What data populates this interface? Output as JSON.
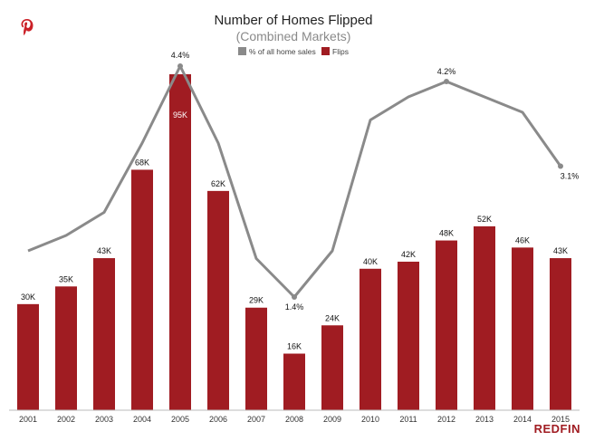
{
  "chart_data": {
    "type": "bar",
    "title": "Number of Homes Flipped",
    "subtitle": "(Combined Markets)",
    "legend_position": "top-center",
    "categories": [
      "2001",
      "2002",
      "2003",
      "2004",
      "2005",
      "2006",
      "2007",
      "2008",
      "2009",
      "2010",
      "2011",
      "2012",
      "2013",
      "2014",
      "2015"
    ],
    "series": [
      {
        "name": "Flips",
        "kind": "bar",
        "color": "#a01c22",
        "label_color": "#000000",
        "values": [
          30,
          35,
          43,
          68,
          95,
          62,
          29,
          16,
          24,
          40,
          42,
          48,
          52,
          46,
          43
        ],
        "labels": [
          "30K",
          "35K",
          "43K",
          "68K",
          "95K",
          "62K",
          "29K",
          "16K",
          "24K",
          "40K",
          "42K",
          "48K",
          "52K",
          "46K",
          "43K"
        ]
      },
      {
        "name": "% of all home sales",
        "kind": "line",
        "color": "#8a8a8a",
        "values": [
          2.0,
          2.2,
          2.5,
          3.4,
          4.4,
          3.4,
          1.9,
          1.4,
          2.0,
          3.7,
          4.0,
          4.2,
          4.0,
          3.8,
          3.1
        ],
        "labels": {
          "4": "4.4%",
          "7": "1.4%",
          "11": "4.2%",
          "14": "3.1%"
        }
      }
    ],
    "legend": [
      {
        "label": "% of all home sales",
        "color": "#8a8a8a"
      },
      {
        "label": "Flips",
        "color": "#a01c22"
      }
    ],
    "bar_ylim": [
      0,
      100
    ],
    "line_ylim": [
      0,
      5.2
    ],
    "grid": false
  },
  "icons": {
    "top_left": "pinterest-icon"
  },
  "brand": {
    "text": "REDFIN",
    "color": "#a01c22"
  }
}
